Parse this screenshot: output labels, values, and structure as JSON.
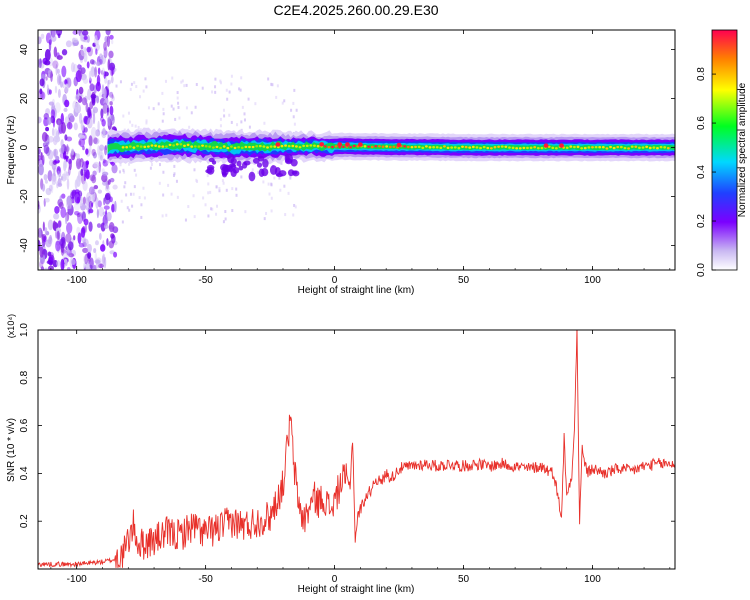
{
  "title": "C2E4.2025.260.00.29.E30",
  "colors": {
    "snr_line": "#e8302a",
    "band_core": "#1a9850",
    "axis": "#000000"
  },
  "chart_data": [
    {
      "type": "heatmap",
      "xlabel": "Height of straight line (km)",
      "ylabel": "Frequency (Hz)",
      "xlim": [
        -115,
        132
      ],
      "ylim": [
        -50,
        48
      ],
      "xticks": [
        -100,
        -50,
        0,
        50,
        100
      ],
      "yticks": [
        -40,
        -20,
        0,
        20,
        40
      ],
      "colorbar": {
        "label": "Normalized spectral amplitude",
        "range": [
          0,
          0.98
        ],
        "ticks": [
          0.0,
          0.2,
          0.4,
          0.6,
          0.8
        ],
        "colormap": "white-purple-blue-cyan-green-yellow-red"
      },
      "band_center": [
        {
          "x": -88,
          "f": 0
        },
        {
          "x": -60,
          "f": 1
        },
        {
          "x": -40,
          "f": 0
        },
        {
          "x": -20,
          "f": 0.5
        },
        {
          "x": 0,
          "f": 0.5
        },
        {
          "x": 50,
          "f": 0
        },
        {
          "x": 100,
          "f": 0
        },
        {
          "x": 132,
          "f": 0
        }
      ],
      "peak_x": [
        -22,
        -5,
        2,
        5,
        10,
        25,
        82,
        88
      ]
    },
    {
      "type": "line",
      "xlabel": "Height of straight line (km)",
      "ylabel": "SNR (10 * v/v)",
      "y_multiplier": "(x10⁴)",
      "xlim": [
        -115,
        132
      ],
      "ylim": [
        0,
        1.0
      ],
      "xticks": [
        -100,
        -50,
        0,
        50,
        100
      ],
      "yticks": [
        0.2,
        0.4,
        0.6,
        0.8,
        1.0
      ],
      "series": [
        {
          "x": [
            -115,
            -100,
            -90,
            -85,
            -82,
            -80,
            -78,
            -76,
            -70,
            -65,
            -60,
            -55,
            -50,
            -45,
            -40,
            -35,
            -30,
            -25,
            -22,
            -20,
            -18,
            -17,
            -16,
            -14,
            -12,
            -10,
            -8,
            -6,
            -4,
            -2,
            0,
            2,
            4,
            6,
            7,
            8,
            9,
            10,
            12,
            14,
            16,
            18,
            20,
            22,
            25,
            30,
            35,
            40,
            45,
            50,
            55,
            60,
            65,
            70,
            75,
            80,
            85,
            88,
            89,
            90,
            92,
            93,
            94,
            95,
            96,
            98,
            100,
            105,
            110,
            115,
            120,
            125,
            132
          ],
          "y": [
            0.02,
            0.02,
            0.03,
            0.04,
            0.06,
            0.12,
            0.18,
            0.1,
            0.12,
            0.15,
            0.14,
            0.18,
            0.15,
            0.17,
            0.2,
            0.18,
            0.2,
            0.22,
            0.3,
            0.35,
            0.55,
            0.63,
            0.45,
            0.28,
            0.2,
            0.25,
            0.3,
            0.28,
            0.3,
            0.25,
            0.28,
            0.35,
            0.38,
            0.35,
            0.55,
            0.12,
            0.22,
            0.25,
            0.3,
            0.33,
            0.38,
            0.36,
            0.4,
            0.38,
            0.42,
            0.43,
            0.44,
            0.43,
            0.44,
            0.43,
            0.44,
            0.43,
            0.44,
            0.43,
            0.42,
            0.43,
            0.4,
            0.22,
            0.55,
            0.3,
            0.4,
            0.6,
            1.0,
            0.2,
            0.5,
            0.4,
            0.42,
            0.4,
            0.42,
            0.41,
            0.43,
            0.44,
            0.44
          ]
        }
      ]
    }
  ]
}
